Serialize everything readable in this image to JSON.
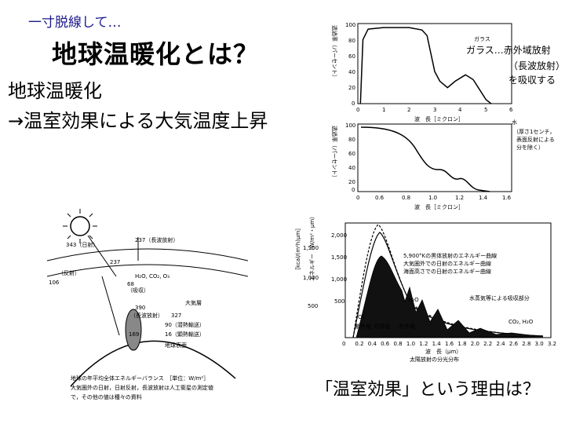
{
  "slide": {
    "aside": "一寸脱線して…",
    "title": "地球温暖化とは？",
    "definition_line1": "地球温暖化",
    "definition_line2": "→温室効果による大気温度上昇",
    "question": "「温室効果」という理由は？"
  },
  "glass_chart": {
    "ylabel": "透過率（パーセント）",
    "y_ticks": [
      "100",
      "80",
      "60",
      "40",
      "20",
      "0"
    ],
    "x_ticks": [
      "0",
      "1",
      "2",
      "3",
      "4",
      "5",
      "6"
    ],
    "xlabel": "波　長［ミクロン］",
    "note_small": "ガラス",
    "note_line1": "ガラス…赤外域放射",
    "note_line2": "（長波放射）",
    "note_line3": "を吸収する",
    "curve": [
      [
        0.1,
        0
      ],
      [
        0.2,
        80
      ],
      [
        0.4,
        93
      ],
      [
        1,
        95
      ],
      [
        2,
        95
      ],
      [
        2.5,
        92
      ],
      [
        2.7,
        85
      ],
      [
        3,
        40
      ],
      [
        3.2,
        28
      ],
      [
        3.5,
        20
      ],
      [
        3.8,
        28
      ],
      [
        4.2,
        36
      ],
      [
        4.5,
        30
      ],
      [
        4.8,
        15
      ],
      [
        5,
        5
      ],
      [
        5.2,
        0
      ]
    ]
  },
  "water_chart": {
    "ylabel": "透過率（パーセント）",
    "y_ticks": [
      "100",
      "80",
      "60",
      "40",
      "20",
      "0"
    ],
    "x_ticks": [
      "0",
      "0.6",
      "0.8",
      "1.0",
      "1.2",
      "1.4",
      "1.6"
    ],
    "xlabel": "波　長［ミクロン］",
    "note_title": "水",
    "note_line1": "（厚さ1センチ，",
    "note_line2": "表面反射による",
    "note_line3": "分を除く）"
  },
  "energy_diagram": {
    "sun_in": "343（日射）",
    "longwave_out": "237（長波放射）",
    "reflected": "106",
    "reflected_label": "（反射）",
    "v237": "237",
    "gases": "H₂O, CO₂, O₃",
    "absorbed": "68",
    "absorbed_label": "（吸収）",
    "atmosphere": "大気層",
    "v390": "390",
    "v390_label": "（長波放射）",
    "v327": "327",
    "v90": "90（潜熱輸送）",
    "v169": "169",
    "v16": "16（顕熱輸送）",
    "ground_label": "地球表面",
    "caption1": "地球の年平均全体エネルギーバランス　［単位：W/m²］",
    "caption2": "大気圏外の日射，日射反射，長波放射は人工衛星の測定値",
    "caption3": "で，その他の値は種々の資料"
  },
  "spectrum_chart": {
    "ylabel_left": "［kcal/(m²h)μm］",
    "ylabel_right": "エネルギー（W/m²・μm）",
    "y_ticks_left": [
      "1,500",
      "1,000",
      "500"
    ],
    "y_ticks_right": [
      "2,000",
      "1,500",
      "1,000",
      "500"
    ],
    "legend1": "5,900°Kの黒体放射のエネルギー曲線",
    "legend2": "大気圏外での日射のエネルギー曲線",
    "legend3": "海面高さでの日射のエネルギー曲線",
    "absorb_label": "水蒸気等による吸収部分",
    "band_uv": "紫外域",
    "band_vis": "可視域",
    "band_ir": "赤外域",
    "mol_o3": "O₃",
    "mol_h2o": "H₂O",
    "mol_co2": "CO₂, H₂O",
    "x_ticks": [
      "0",
      "0.2",
      "0.4",
      "0.6",
      "0.8",
      "1.0",
      "1.2",
      "1.4",
      "1.6",
      "1.8",
      "2.0",
      "2.2",
      "2.4",
      "2.6",
      "2.8",
      "3.0",
      "3.2"
    ],
    "xlabel": "波　長（μm）",
    "caption": "太陽放射の分光分布"
  }
}
